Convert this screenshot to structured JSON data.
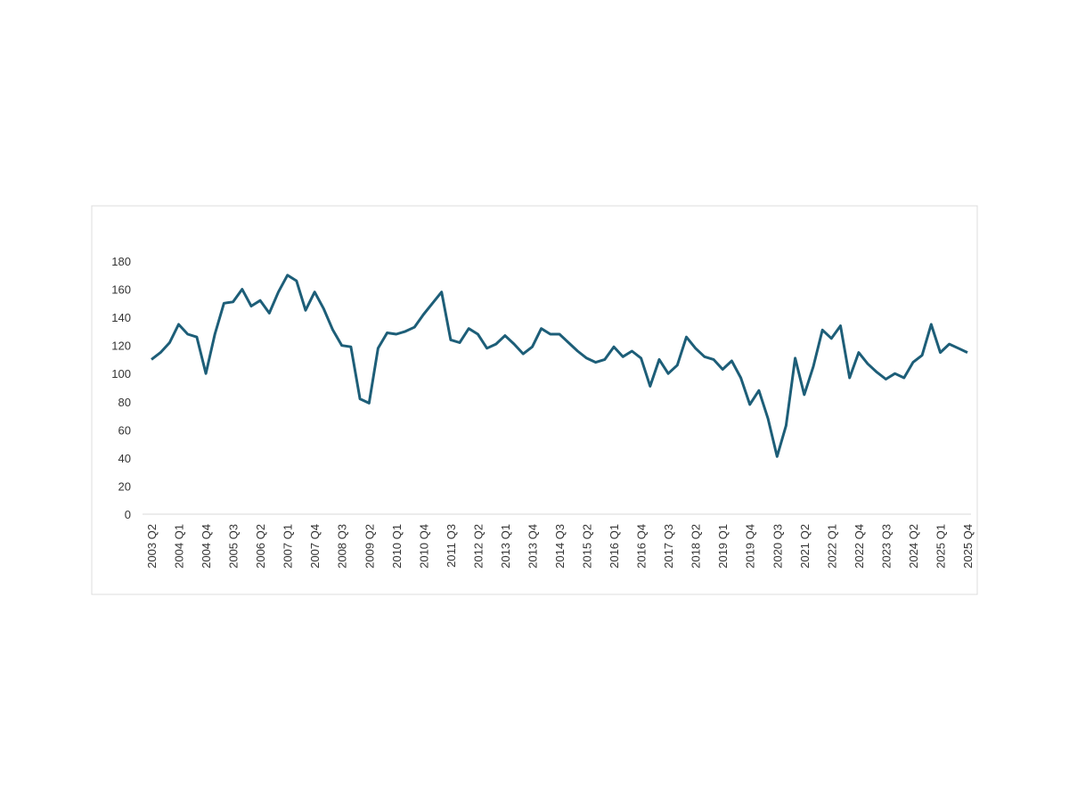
{
  "chart_data": {
    "type": "line",
    "categories": [
      "2003 Q2",
      null,
      null,
      "2004 Q1",
      null,
      null,
      "2004 Q4",
      null,
      null,
      "2005 Q3",
      null,
      null,
      "2006 Q2",
      null,
      null,
      "2007 Q1",
      null,
      null,
      "2007 Q4",
      null,
      null,
      "2008 Q3",
      null,
      null,
      "2009 Q2",
      null,
      null,
      "2010 Q1",
      null,
      null,
      "2010 Q4",
      null,
      null,
      "2011 Q3",
      null,
      null,
      "2012 Q2",
      null,
      null,
      "2013 Q1",
      null,
      null,
      "2013 Q4",
      null,
      null,
      "2014 Q3",
      null,
      null,
      "2015 Q2",
      null,
      null,
      "2016 Q1",
      null,
      null,
      "2016 Q4",
      null,
      null,
      "2017 Q3",
      null,
      null,
      "2018 Q2",
      null,
      null,
      "2019 Q1",
      null,
      null,
      "2019 Q4",
      null,
      null,
      "2020 Q3",
      null,
      null,
      "2021 Q2",
      null,
      null,
      "2022 Q1",
      null,
      null,
      "2022 Q4",
      null,
      null,
      "2023 Q3",
      null,
      null,
      "2024 Q2",
      null,
      null,
      "2025 Q1",
      null,
      null,
      "2025 Q4"
    ],
    "values": [
      110,
      115,
      122,
      135,
      128,
      126,
      100,
      128,
      150,
      151,
      160,
      148,
      152,
      143,
      158,
      170,
      166,
      145,
      158,
      146,
      131,
      120,
      119,
      82,
      79,
      118,
      129,
      128,
      130,
      133,
      142,
      150,
      158,
      124,
      122,
      132,
      128,
      118,
      121,
      127,
      121,
      114,
      119,
      132,
      128,
      128,
      122,
      116,
      111,
      108,
      110,
      119,
      112,
      116,
      111,
      91,
      110,
      100,
      106,
      126,
      118,
      112,
      110,
      103,
      109,
      97,
      78,
      88,
      68,
      41,
      63,
      111,
      85,
      105,
      131,
      125,
      134,
      97,
      115,
      107,
      101,
      96,
      100,
      97,
      108,
      113,
      135,
      115,
      121,
      118,
      115
    ],
    "color": "#1d5e78",
    "ylim": [
      0,
      180
    ],
    "yticks": [
      0,
      20,
      40,
      60,
      80,
      100,
      120,
      140,
      160,
      180
    ],
    "grid": false
  }
}
